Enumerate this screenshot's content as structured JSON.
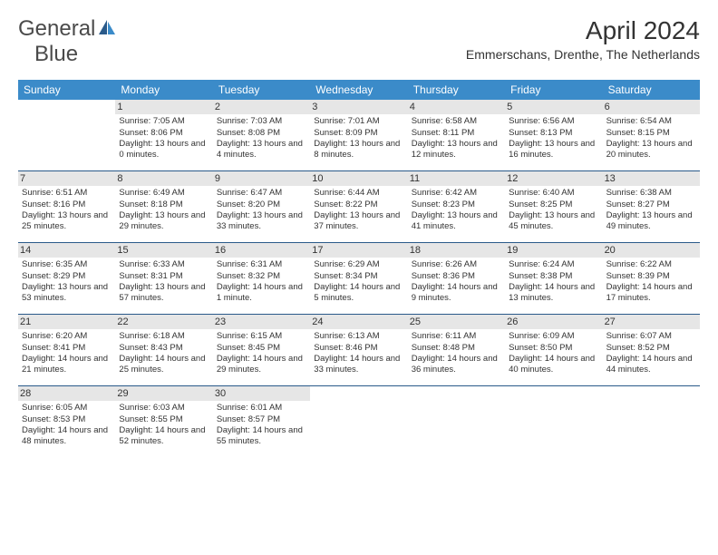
{
  "logo": {
    "word1": "General",
    "word2": "Blue"
  },
  "title": "April 2024",
  "location": "Emmerschans, Drenthe, The Netherlands",
  "dayHeaders": [
    "Sunday",
    "Monday",
    "Tuesday",
    "Wednesday",
    "Thursday",
    "Friday",
    "Saturday"
  ],
  "colors": {
    "headerBg": "#3b8bc9",
    "headerText": "#ffffff",
    "shadedBg": "#e6e6e6",
    "borderColor": "#2a5a8a",
    "textColor": "#333333",
    "logoBlue": "#2178bb",
    "logoGray": "#4a4a4a",
    "background": "#ffffff"
  },
  "fonts": {
    "titleSize": 28,
    "locationSize": 14,
    "logoSize": 24,
    "dayHeaderSize": 12,
    "dayNumSize": 11,
    "bodySize": 9.5
  },
  "weeks": [
    [
      {
        "n": "",
        "sr": "",
        "ss": "",
        "dl": ""
      },
      {
        "n": "1",
        "sr": "Sunrise: 7:05 AM",
        "ss": "Sunset: 8:06 PM",
        "dl": "Daylight: 13 hours and 0 minutes."
      },
      {
        "n": "2",
        "sr": "Sunrise: 7:03 AM",
        "ss": "Sunset: 8:08 PM",
        "dl": "Daylight: 13 hours and 4 minutes."
      },
      {
        "n": "3",
        "sr": "Sunrise: 7:01 AM",
        "ss": "Sunset: 8:09 PM",
        "dl": "Daylight: 13 hours and 8 minutes."
      },
      {
        "n": "4",
        "sr": "Sunrise: 6:58 AM",
        "ss": "Sunset: 8:11 PM",
        "dl": "Daylight: 13 hours and 12 minutes."
      },
      {
        "n": "5",
        "sr": "Sunrise: 6:56 AM",
        "ss": "Sunset: 8:13 PM",
        "dl": "Daylight: 13 hours and 16 minutes."
      },
      {
        "n": "6",
        "sr": "Sunrise: 6:54 AM",
        "ss": "Sunset: 8:15 PM",
        "dl": "Daylight: 13 hours and 20 minutes."
      }
    ],
    [
      {
        "n": "7",
        "sr": "Sunrise: 6:51 AM",
        "ss": "Sunset: 8:16 PM",
        "dl": "Daylight: 13 hours and 25 minutes."
      },
      {
        "n": "8",
        "sr": "Sunrise: 6:49 AM",
        "ss": "Sunset: 8:18 PM",
        "dl": "Daylight: 13 hours and 29 minutes."
      },
      {
        "n": "9",
        "sr": "Sunrise: 6:47 AM",
        "ss": "Sunset: 8:20 PM",
        "dl": "Daylight: 13 hours and 33 minutes."
      },
      {
        "n": "10",
        "sr": "Sunrise: 6:44 AM",
        "ss": "Sunset: 8:22 PM",
        "dl": "Daylight: 13 hours and 37 minutes."
      },
      {
        "n": "11",
        "sr": "Sunrise: 6:42 AM",
        "ss": "Sunset: 8:23 PM",
        "dl": "Daylight: 13 hours and 41 minutes."
      },
      {
        "n": "12",
        "sr": "Sunrise: 6:40 AM",
        "ss": "Sunset: 8:25 PM",
        "dl": "Daylight: 13 hours and 45 minutes."
      },
      {
        "n": "13",
        "sr": "Sunrise: 6:38 AM",
        "ss": "Sunset: 8:27 PM",
        "dl": "Daylight: 13 hours and 49 minutes."
      }
    ],
    [
      {
        "n": "14",
        "sr": "Sunrise: 6:35 AM",
        "ss": "Sunset: 8:29 PM",
        "dl": "Daylight: 13 hours and 53 minutes."
      },
      {
        "n": "15",
        "sr": "Sunrise: 6:33 AM",
        "ss": "Sunset: 8:31 PM",
        "dl": "Daylight: 13 hours and 57 minutes."
      },
      {
        "n": "16",
        "sr": "Sunrise: 6:31 AM",
        "ss": "Sunset: 8:32 PM",
        "dl": "Daylight: 14 hours and 1 minute."
      },
      {
        "n": "17",
        "sr": "Sunrise: 6:29 AM",
        "ss": "Sunset: 8:34 PM",
        "dl": "Daylight: 14 hours and 5 minutes."
      },
      {
        "n": "18",
        "sr": "Sunrise: 6:26 AM",
        "ss": "Sunset: 8:36 PM",
        "dl": "Daylight: 14 hours and 9 minutes."
      },
      {
        "n": "19",
        "sr": "Sunrise: 6:24 AM",
        "ss": "Sunset: 8:38 PM",
        "dl": "Daylight: 14 hours and 13 minutes."
      },
      {
        "n": "20",
        "sr": "Sunrise: 6:22 AM",
        "ss": "Sunset: 8:39 PM",
        "dl": "Daylight: 14 hours and 17 minutes."
      }
    ],
    [
      {
        "n": "21",
        "sr": "Sunrise: 6:20 AM",
        "ss": "Sunset: 8:41 PM",
        "dl": "Daylight: 14 hours and 21 minutes."
      },
      {
        "n": "22",
        "sr": "Sunrise: 6:18 AM",
        "ss": "Sunset: 8:43 PM",
        "dl": "Daylight: 14 hours and 25 minutes."
      },
      {
        "n": "23",
        "sr": "Sunrise: 6:15 AM",
        "ss": "Sunset: 8:45 PM",
        "dl": "Daylight: 14 hours and 29 minutes."
      },
      {
        "n": "24",
        "sr": "Sunrise: 6:13 AM",
        "ss": "Sunset: 8:46 PM",
        "dl": "Daylight: 14 hours and 33 minutes."
      },
      {
        "n": "25",
        "sr": "Sunrise: 6:11 AM",
        "ss": "Sunset: 8:48 PM",
        "dl": "Daylight: 14 hours and 36 minutes."
      },
      {
        "n": "26",
        "sr": "Sunrise: 6:09 AM",
        "ss": "Sunset: 8:50 PM",
        "dl": "Daylight: 14 hours and 40 minutes."
      },
      {
        "n": "27",
        "sr": "Sunrise: 6:07 AM",
        "ss": "Sunset: 8:52 PM",
        "dl": "Daylight: 14 hours and 44 minutes."
      }
    ],
    [
      {
        "n": "28",
        "sr": "Sunrise: 6:05 AM",
        "ss": "Sunset: 8:53 PM",
        "dl": "Daylight: 14 hours and 48 minutes."
      },
      {
        "n": "29",
        "sr": "Sunrise: 6:03 AM",
        "ss": "Sunset: 8:55 PM",
        "dl": "Daylight: 14 hours and 52 minutes."
      },
      {
        "n": "30",
        "sr": "Sunrise: 6:01 AM",
        "ss": "Sunset: 8:57 PM",
        "dl": "Daylight: 14 hours and 55 minutes."
      },
      {
        "n": "",
        "sr": "",
        "ss": "",
        "dl": ""
      },
      {
        "n": "",
        "sr": "",
        "ss": "",
        "dl": ""
      },
      {
        "n": "",
        "sr": "",
        "ss": "",
        "dl": ""
      },
      {
        "n": "",
        "sr": "",
        "ss": "",
        "dl": ""
      }
    ]
  ]
}
